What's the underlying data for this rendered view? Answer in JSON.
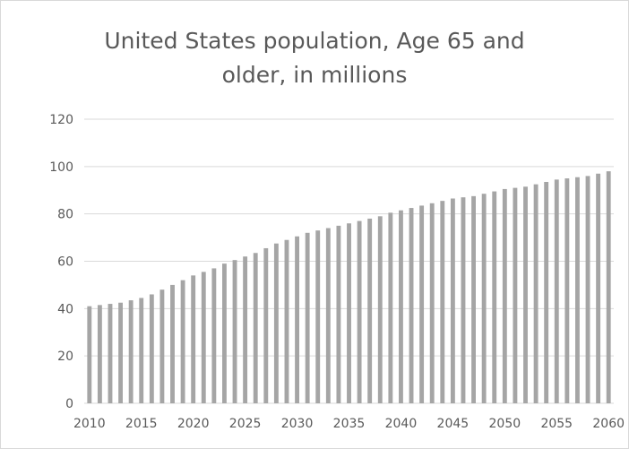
{
  "chart_data": {
    "type": "bar",
    "title": "United States population, Age 65 and older, in millions",
    "title_lines": [
      "United States population, Age 65 and",
      "older, in millions"
    ],
    "xlabel": "",
    "ylabel": "",
    "x": [
      2010,
      2011,
      2012,
      2013,
      2014,
      2015,
      2016,
      2017,
      2018,
      2019,
      2020,
      2021,
      2022,
      2023,
      2024,
      2025,
      2026,
      2027,
      2028,
      2029,
      2030,
      2031,
      2032,
      2033,
      2034,
      2035,
      2036,
      2037,
      2038,
      2039,
      2040,
      2041,
      2042,
      2043,
      2044,
      2045,
      2046,
      2047,
      2048,
      2049,
      2050,
      2051,
      2052,
      2053,
      2054,
      2055,
      2056,
      2057,
      2058,
      2059,
      2060
    ],
    "values": [
      41,
      41.5,
      42,
      42.5,
      43.5,
      44.5,
      46,
      48,
      50,
      52,
      54,
      55.5,
      57,
      59,
      60.5,
      62,
      63.5,
      65.5,
      67.5,
      69,
      70.5,
      72,
      73,
      74,
      75,
      76,
      77,
      78,
      79,
      80.5,
      81.5,
      82.5,
      83.5,
      84.5,
      85.5,
      86.5,
      87,
      87.5,
      88.5,
      89.5,
      90.5,
      91,
      91.5,
      92.5,
      93.5,
      94.5,
      95,
      95.5,
      96,
      97,
      98
    ],
    "x_tick_labels": [
      "2010",
      "2015",
      "2020",
      "2025",
      "2030",
      "2035",
      "2040",
      "2045",
      "2050",
      "2055",
      "2060"
    ],
    "y_tick_labels": [
      "0",
      "20",
      "40",
      "60",
      "80",
      "100",
      "120"
    ],
    "ylim": [
      0,
      120
    ],
    "ytick_step": 20,
    "grid": true,
    "legend": "none",
    "colors": {
      "bar": "#a5a5a5",
      "grid": "#d9d9d9",
      "text": "#595959"
    }
  }
}
